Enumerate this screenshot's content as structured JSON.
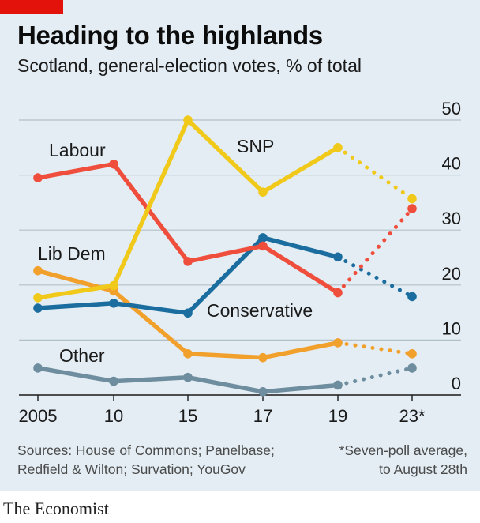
{
  "header": {
    "title": "Heading to the highlands",
    "subtitle": "Scotland, general-election votes, % of total"
  },
  "footer": {
    "source_line1": "Sources: House of Commons; Panelbase;",
    "source_line2": "Redfield & Wilton; Survation; YouGov",
    "note_line1": "*Seven-poll average,",
    "note_line2": "to August 28th",
    "brand": "The Economist"
  },
  "colors": {
    "accent_red": "#e3120b",
    "background": "#e3edf3",
    "gridline": "#b4c0c8",
    "axis": "#1a1a1a"
  },
  "chart_data": {
    "type": "line",
    "x_labels": [
      "2005",
      "10",
      "15",
      "17",
      "19",
      "23*"
    ],
    "x": [
      2005,
      2010,
      2015,
      2017,
      2019,
      2023
    ],
    "ylim": [
      0,
      50
    ],
    "y_ticks": [
      0,
      10,
      20,
      30,
      40,
      50
    ],
    "y_axis_side": "right",
    "grid": true,
    "projected_segment": "2019-2023 drawn dotted (poll average)",
    "series": [
      {
        "name": "SNP",
        "color": "#f0c91a",
        "values": [
          17.7,
          19.9,
          50.0,
          36.9,
          45.0,
          35.7
        ]
      },
      {
        "name": "Labour",
        "color": "#ef4e3d",
        "values": [
          39.5,
          42.0,
          24.3,
          27.1,
          18.6,
          33.9
        ]
      },
      {
        "name": "Conservative",
        "color": "#1a6d9e",
        "values": [
          15.8,
          16.7,
          14.9,
          28.6,
          25.1,
          17.9
        ]
      },
      {
        "name": "Lib Dem",
        "color": "#f2a02c",
        "values": [
          22.6,
          18.9,
          7.5,
          6.8,
          9.5,
          7.5
        ]
      },
      {
        "name": "Other",
        "color": "#6e8d9f",
        "values": [
          4.9,
          2.5,
          3.2,
          0.6,
          1.8,
          4.9
        ]
      }
    ]
  }
}
